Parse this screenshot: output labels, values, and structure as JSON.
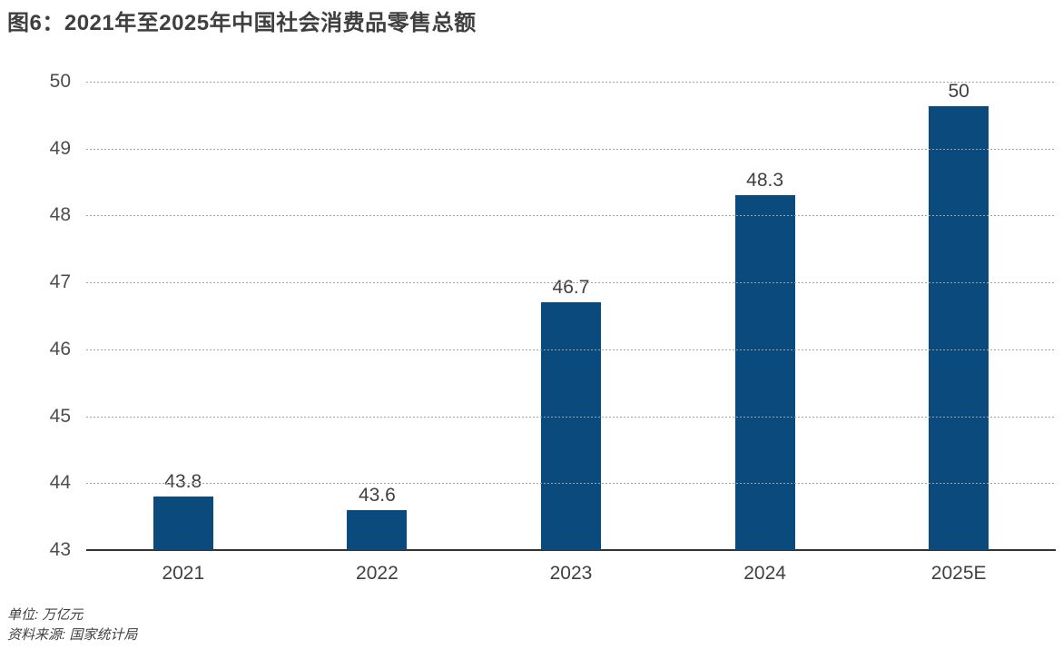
{
  "title": "图6：2021年至2025年中国社会消费品零售总额",
  "chart_data": {
    "type": "bar",
    "title": "图6：2021年至2025年中国社会消费品零售总额",
    "categories": [
      "2021",
      "2022",
      "2023",
      "2024",
      "2025E"
    ],
    "values": [
      43.8,
      43.6,
      46.7,
      48.3,
      50
    ],
    "value_labels": [
      "43.8",
      "43.6",
      "46.7",
      "48.3",
      "50"
    ],
    "xlabel": "",
    "ylabel": "",
    "ylim": [
      43,
      50
    ],
    "yticks": [
      43,
      44,
      45,
      46,
      47,
      48,
      49,
      50
    ],
    "grid": "horizontal-dotted",
    "legend": "none",
    "bar_color": "#0b4a7d",
    "unit": "万亿元"
  },
  "footer": {
    "unit_note": "单位: 万亿元",
    "source_note": "资料来源: 国家统计局"
  },
  "colors": {
    "bar": "#0b4a7d",
    "title_text": "#3f3f3f",
    "axis_text": "#4d4d4d",
    "gridline": "#a3a3a3",
    "baseline": "#333333",
    "background": "#ffffff"
  }
}
